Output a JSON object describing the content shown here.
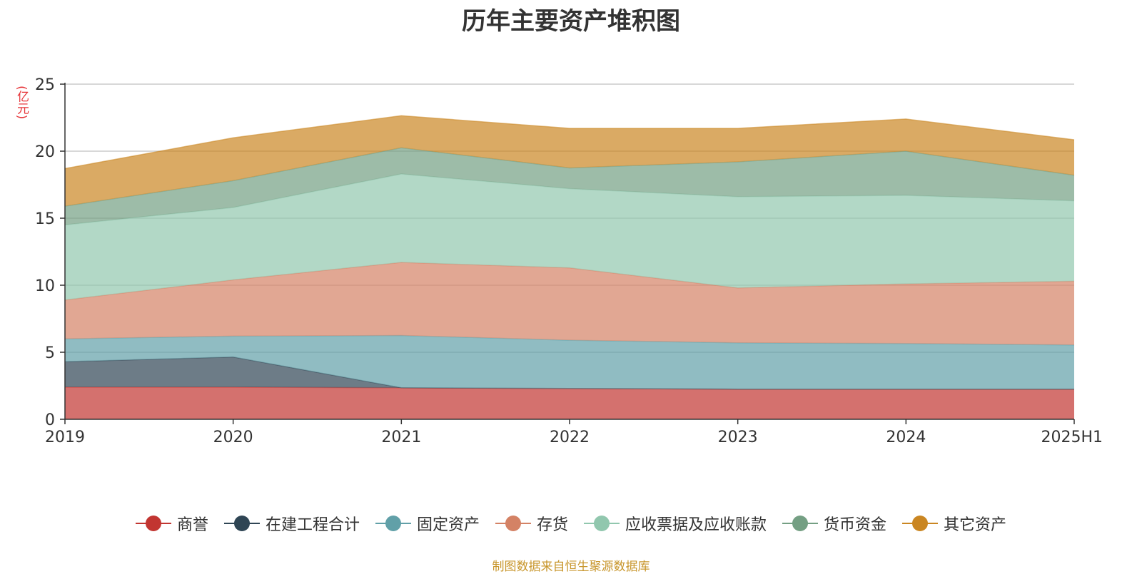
{
  "title": "历年主要资产堆积图",
  "source_note": "制图数据来自恒生聚源数据库",
  "chart_data": {
    "type": "area",
    "stacked": true,
    "title": "历年主要资产堆积图",
    "ylabel": "(亿元)",
    "xlabel": "",
    "x": [
      "2019",
      "2020",
      "2021",
      "2022",
      "2023",
      "2024",
      "2025H1"
    ],
    "ylim": [
      0,
      25
    ],
    "yticks": [
      0,
      5,
      10,
      15,
      20,
      25
    ],
    "grid": true,
    "legend_position": "bottom",
    "series": [
      {
        "name": "商誉",
        "color": "#c23531",
        "values": [
          2.4,
          2.4,
          2.35,
          2.3,
          2.25,
          2.25,
          2.25
        ]
      },
      {
        "name": "在建工程合计",
        "color": "#2f4554",
        "values": [
          1.9,
          2.25,
          0.0,
          0.0,
          0.0,
          0.0,
          0.0
        ]
      },
      {
        "name": "固定资产",
        "color": "#61a0a8",
        "values": [
          1.7,
          1.55,
          3.9,
          3.6,
          3.45,
          3.4,
          3.3
        ]
      },
      {
        "name": "存货",
        "color": "#d48265",
        "values": [
          2.9,
          4.2,
          5.45,
          5.4,
          4.1,
          4.45,
          4.75
        ]
      },
      {
        "name": "应收票据及应收账款",
        "color": "#91c7ae",
        "values": [
          5.6,
          5.4,
          6.6,
          5.9,
          6.8,
          6.6,
          6.0
        ]
      },
      {
        "name": "货币资金",
        "color": "#749f83",
        "values": [
          1.4,
          2.0,
          1.95,
          1.55,
          2.6,
          3.3,
          1.9
        ]
      },
      {
        "name": "其它资产",
        "color": "#ca8622",
        "values": [
          2.8,
          3.2,
          2.4,
          2.95,
          2.5,
          2.4,
          2.65
        ]
      }
    ]
  }
}
